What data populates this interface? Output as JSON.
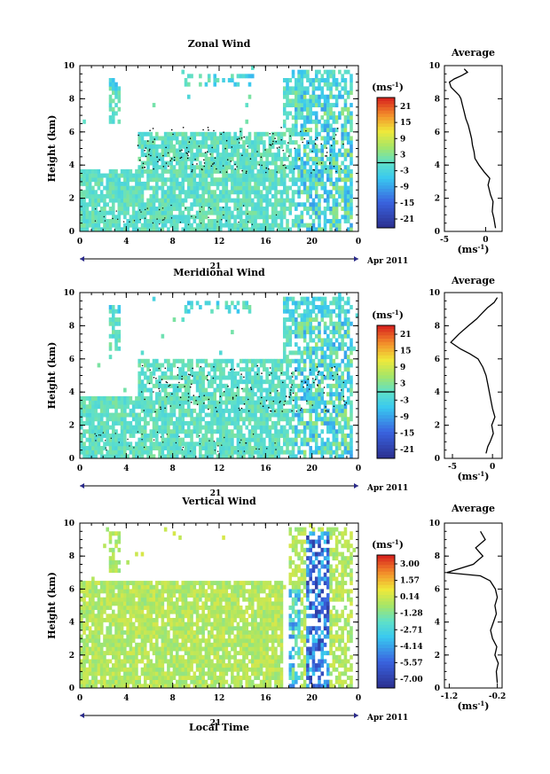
{
  "panels": [
    {
      "title": "Zonal Wind",
      "ylabel": "Height (km)",
      "yticks": [
        "0",
        "2",
        "4",
        "6",
        "8",
        "10"
      ],
      "xticks": [
        "0",
        "4",
        "8",
        "12",
        "16",
        "20",
        "0"
      ],
      "date_label": "21",
      "month_label": "Apr 2011",
      "cbar_title": "(ms",
      "cbar_title_sup": "-1",
      "cbar_ticks": [
        "21",
        "15",
        "9",
        "3",
        "-3",
        "-9",
        "-15",
        "-21"
      ],
      "avg_title": "Average",
      "avg_xticks": [
        "-5",
        "0"
      ],
      "avg_xlabel": "(ms",
      "avg_xlabel_sup": "-1"
    },
    {
      "title": "Meridional Wind",
      "ylabel": "Height (km)",
      "yticks": [
        "0",
        "2",
        "4",
        "6",
        "8",
        "10"
      ],
      "xticks": [
        "0",
        "4",
        "8",
        "12",
        "16",
        "20",
        "0"
      ],
      "date_label": "21",
      "month_label": "Apr 2011",
      "cbar_title": "(ms",
      "cbar_title_sup": "-1",
      "cbar_ticks": [
        "21",
        "15",
        "9",
        "3",
        "-3",
        "-9",
        "-15",
        "-21"
      ],
      "avg_title": "Average",
      "avg_xticks": [
        "-5",
        "0"
      ],
      "avg_xlabel": "(ms",
      "avg_xlabel_sup": "-1"
    },
    {
      "title": "Vertical Wind",
      "ylabel": "Height (km)",
      "yticks": [
        "0",
        "2",
        "4",
        "6",
        "8",
        "10"
      ],
      "xticks": [
        "0",
        "4",
        "8",
        "12",
        "16",
        "20",
        "0"
      ],
      "date_label": "21",
      "month_label": "Apr 2011",
      "xlabel": "Local Time",
      "cbar_title": "(ms",
      "cbar_title_sup": "-1",
      "cbar_ticks": [
        "3.00",
        "1.57",
        "0.14",
        "-1.28",
        "-2.71",
        "-4.14",
        "-5.57",
        "-7.00"
      ],
      "avg_title": "Average",
      "avg_xticks": [
        "-1.2",
        "-0.2"
      ],
      "avg_xlabel": "(ms",
      "avg_xlabel_sup": "-1"
    }
  ],
  "chart_data": [
    {
      "type": "heatmap",
      "title": "Zonal Wind",
      "ylabel": "Height (km)",
      "xlim": [
        0,
        24
      ],
      "ylim": [
        0,
        10
      ],
      "clim": [
        -21,
        21
      ],
      "colors": {
        "background": "#ffffff",
        "low": "#2b2f8f",
        "mid": "#5fe0c8",
        "high": "#d61d1d"
      },
      "grid": false
    },
    {
      "type": "line",
      "title": "Average",
      "xlabel": "(ms-1)",
      "ylabel": "",
      "xlim": [
        -5,
        2
      ],
      "ylim": [
        0,
        10
      ],
      "x": [
        1.2,
        1.0,
        0.8,
        0.9,
        0.6,
        0.3,
        0.5,
        -0.2,
        -0.8,
        -1.3,
        -1.4,
        -1.6,
        -1.7,
        -1.9,
        -2.1,
        -2.4,
        -2.6,
        -2.8,
        -3.0,
        -3.2,
        -3.6,
        -4.2,
        -4.4,
        -3.8,
        -2.9,
        -2.2,
        -2.6
      ],
      "y": [
        0.2,
        0.8,
        1.2,
        1.8,
        2.2,
        2.8,
        3.2,
        3.6,
        4.0,
        4.4,
        4.8,
        5.2,
        5.6,
        6.0,
        6.4,
        6.8,
        7.2,
        7.6,
        8.0,
        8.2,
        8.4,
        8.7,
        9.0,
        9.2,
        9.4,
        9.6,
        9.8
      ]
    },
    {
      "type": "heatmap",
      "title": "Meridional Wind",
      "ylabel": "Height (km)",
      "xlim": [
        0,
        24
      ],
      "ylim": [
        0,
        10
      ],
      "clim": [
        -21,
        21
      ],
      "colors": {
        "background": "#ffffff",
        "low": "#2b2f8f",
        "mid": "#5fe0c8",
        "high": "#d61d1d"
      },
      "grid": false
    },
    {
      "type": "line",
      "title": "Average",
      "xlabel": "(ms-1)",
      "ylabel": "",
      "xlim": [
        -6,
        1.2
      ],
      "ylim": [
        0,
        10
      ],
      "x": [
        -0.8,
        -0.6,
        -0.3,
        0.1,
        -0.1,
        0.3,
        0.0,
        -0.2,
        -0.4,
        -0.6,
        -0.8,
        -1.2,
        -1.8,
        -2.8,
        -4.0,
        -5.2,
        -4.2,
        -3.0,
        -2.0,
        -1.2,
        -0.6,
        0.2,
        0.6
      ],
      "y": [
        0.3,
        0.7,
        1.0,
        1.5,
        2.0,
        2.5,
        3.0,
        3.5,
        4.0,
        4.5,
        5.0,
        5.5,
        6.0,
        6.3,
        6.6,
        7.0,
        7.5,
        8.0,
        8.4,
        8.8,
        9.1,
        9.4,
        9.7
      ]
    },
    {
      "type": "heatmap",
      "title": "Vertical Wind",
      "ylabel": "Height (km)",
      "xlabel": "Local Time",
      "xlim": [
        0,
        24
      ],
      "ylim": [
        0,
        10
      ],
      "clim": [
        -7.0,
        3.0
      ],
      "colors": {
        "background": "#ffffff",
        "low": "#2b2f8f",
        "mid": "#c8ec5a",
        "high": "#d61d1d"
      },
      "grid": false
    },
    {
      "type": "line",
      "title": "Average",
      "xlabel": "(ms-1)",
      "ylabel": "",
      "xlim": [
        -1.3,
        -0.1
      ],
      "ylim": [
        0,
        10
      ],
      "x": [
        -0.2,
        -0.22,
        -0.18,
        -0.25,
        -0.21,
        -0.3,
        -0.34,
        -0.28,
        -0.22,
        -0.25,
        -0.2,
        -0.24,
        -0.35,
        -0.55,
        -1.25,
        -0.7,
        -0.5,
        -0.65,
        -0.45,
        -0.55
      ],
      "y": [
        0.3,
        1.0,
        1.5,
        2.0,
        2.5,
        3.0,
        3.5,
        4.0,
        4.5,
        5.0,
        5.5,
        6.0,
        6.5,
        6.8,
        7.0,
        7.5,
        8.0,
        8.5,
        9.0,
        9.5
      ]
    }
  ]
}
